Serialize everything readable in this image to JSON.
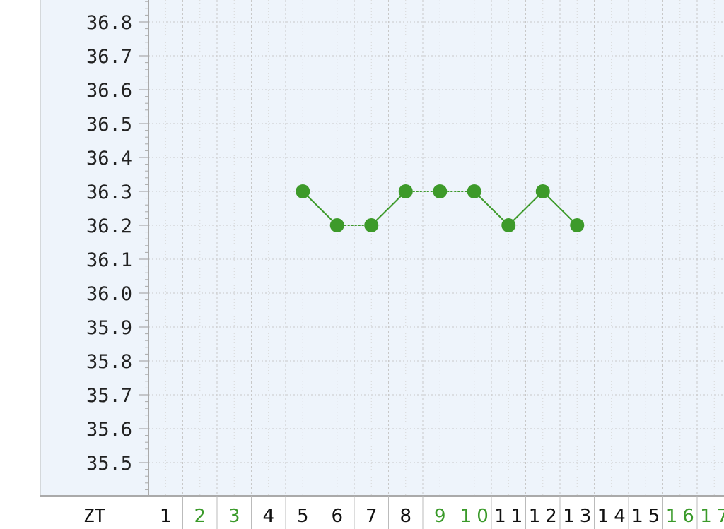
{
  "chart_data": {
    "type": "line",
    "row_label": "ZT",
    "x": [
      1,
      2,
      3,
      4,
      5,
      6,
      7,
      8,
      9,
      10,
      11,
      12,
      13,
      14,
      15,
      16,
      17
    ],
    "x_label_colors": [
      "#111111",
      "#3a9a2a",
      "#3a9a2a",
      "#111111",
      "#111111",
      "#111111",
      "#111111",
      "#111111",
      "#3a9a2a",
      "#3a9a2a",
      "#111111",
      "#111111",
      "#111111",
      "#111111",
      "#111111",
      "#3a9a2a",
      "#3a9a2a"
    ],
    "y_ticks": [
      "36.8",
      "36.7",
      "36.6",
      "36.5",
      "36.4",
      "36.3",
      "36.2",
      "36.1",
      "36.0",
      "35.9",
      "35.8",
      "35.7",
      "35.6",
      "35.5"
    ],
    "series": [
      {
        "x": [
          5,
          6,
          7,
          8,
          9,
          10,
          11,
          12,
          13
        ],
        "values": [
          36.3,
          36.2,
          36.2,
          36.3,
          36.3,
          36.3,
          36.2,
          36.3,
          36.2
        ]
      }
    ],
    "grid": true,
    "colors": {
      "line": "#3d9a2a",
      "panel": "#eef4fb",
      "grid": "#c8c8c8"
    }
  }
}
